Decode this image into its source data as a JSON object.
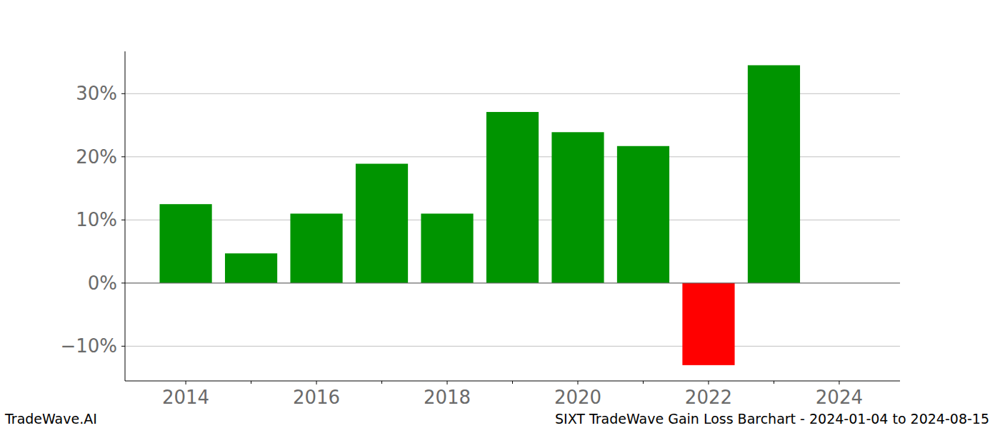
{
  "chart_data": {
    "type": "bar",
    "title": "SIXT TradeWave Gain Loss Barchart - 2024-01-04 to 2024-08-15",
    "annotations": [
      "TradeWave.AI"
    ],
    "x": [
      2014,
      2015,
      2016,
      2017,
      2018,
      2019,
      2020,
      2021,
      2022,
      2023
    ],
    "values": [
      12.5,
      4.7,
      11.0,
      18.9,
      11.0,
      27.1,
      23.9,
      21.7,
      -13.0,
      34.5
    ],
    "colors": [
      "#009400",
      "#009400",
      "#009400",
      "#009400",
      "#009400",
      "#009400",
      "#009400",
      "#009400",
      "#ff0000",
      "#009400"
    ],
    "xlim": [
      2013.07,
      2024.93
    ],
    "xticks": [
      2014,
      2016,
      2018,
      2020,
      2022,
      2024
    ],
    "ylim": [
      -15.5,
      36.7
    ],
    "yticks": [
      {
        "value": -10,
        "label": "−10%"
      },
      {
        "value": 0,
        "label": "0%"
      },
      {
        "value": 10,
        "label": "10%"
      },
      {
        "value": 20,
        "label": "20%"
      },
      {
        "value": 30,
        "label": "30%"
      }
    ],
    "grid": true
  }
}
